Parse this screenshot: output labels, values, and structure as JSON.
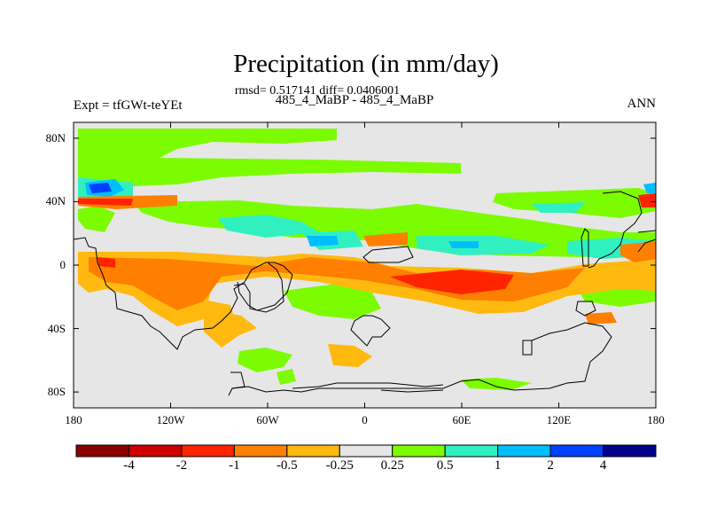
{
  "header": {
    "title": "Precipitation (in mm/day)",
    "stats": "rmsd= 0.517141 diff= 0.0406001",
    "case": "485_4_MaBP - 485_4_MaBP",
    "expt": "Expt = tfGWt-teYEt",
    "season": "ANN"
  },
  "map": {
    "lat_labels": [
      "80N",
      "40N",
      "0",
      "40S",
      "80S"
    ],
    "lat_values": [
      80,
      40,
      0,
      -40,
      -80
    ],
    "lon_labels": [
      "180",
      "120W",
      "60W",
      "0",
      "60E",
      "120E",
      "180"
    ],
    "lon_values": [
      -180,
      -120,
      -60,
      0,
      60,
      120,
      180
    ],
    "background_color": "#e6e6e6"
  },
  "colorbar": {
    "colors": [
      "#8b0000",
      "#cd0000",
      "#ff2400",
      "#ff7f00",
      "#ffb90f",
      "#e6e6e6",
      "#7cfc00",
      "#30f0c0",
      "#00bfff",
      "#0040ff",
      "#00008b"
    ],
    "labels": [
      "-4",
      "-2",
      "-1",
      "-0.5",
      "-0.25",
      "0.25",
      "0.5",
      "1",
      "2",
      "4"
    ]
  }
}
